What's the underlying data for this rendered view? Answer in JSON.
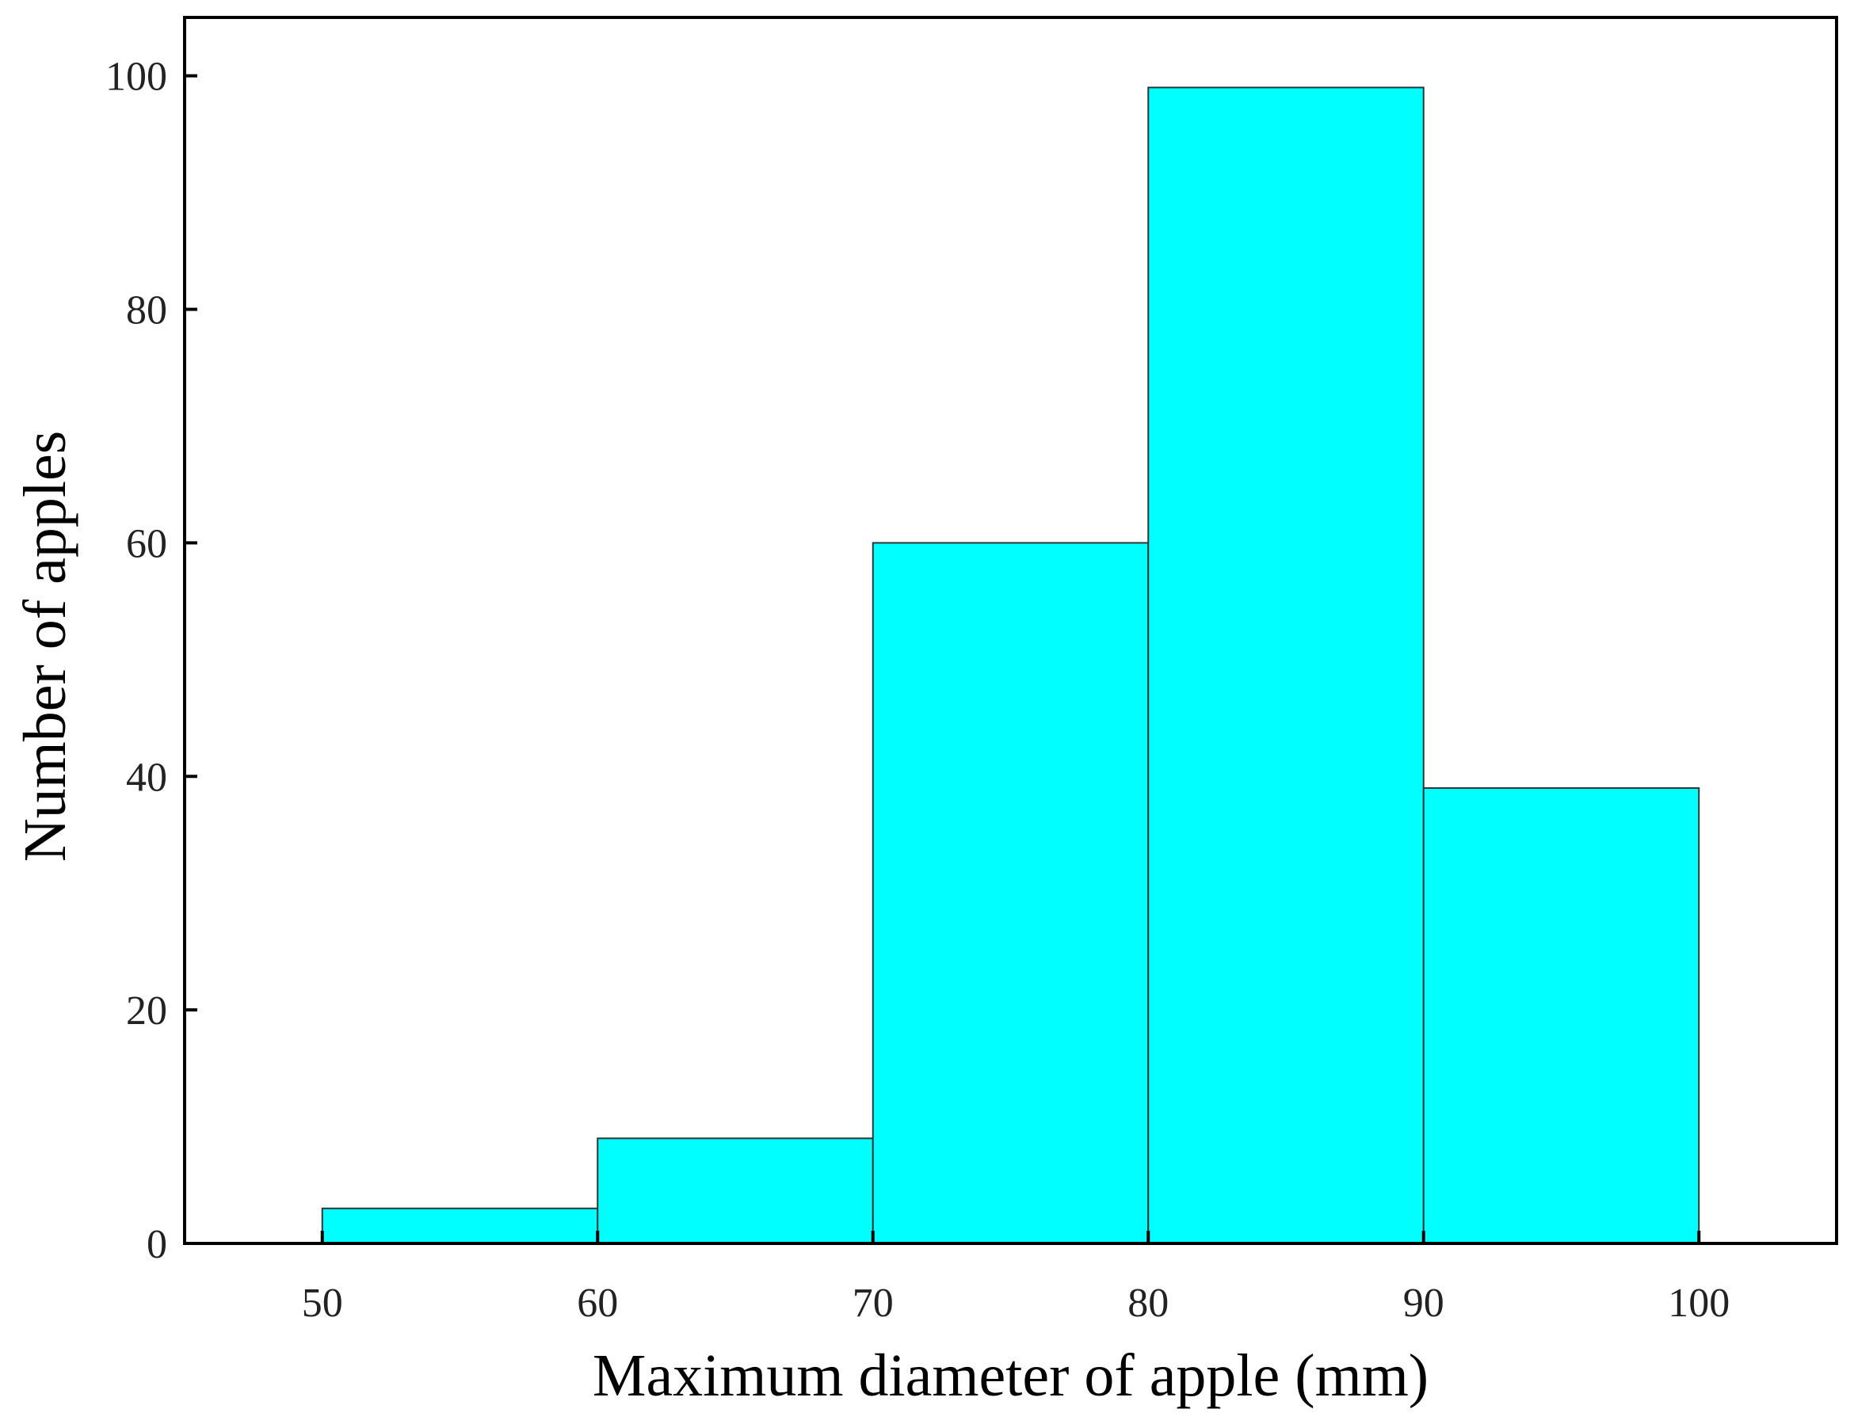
{
  "chart_data": {
    "type": "bar",
    "subtype": "histogram",
    "xlabel": "Maximum diameter of apple (mm)",
    "ylabel": "Number of apples",
    "bins": [
      {
        "start": 50,
        "end": 60,
        "value": 3
      },
      {
        "start": 60,
        "end": 70,
        "value": 9
      },
      {
        "start": 70,
        "end": 80,
        "value": 60
      },
      {
        "start": 80,
        "end": 90,
        "value": 99
      },
      {
        "start": 90,
        "end": 100,
        "value": 39
      }
    ],
    "xticks": [
      50,
      60,
      70,
      80,
      90,
      100
    ],
    "yticks": [
      0,
      20,
      40,
      60,
      80,
      100
    ],
    "xlim": [
      45,
      105
    ],
    "ylim": [
      0,
      105
    ],
    "grid": false,
    "legend": "none",
    "colors": {
      "bar_fill": "#00FFFF",
      "bar_edge": "#333333",
      "axis": "#000000"
    }
  }
}
